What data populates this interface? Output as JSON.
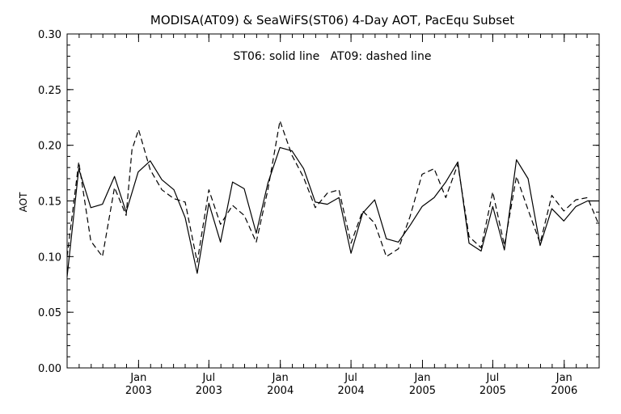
{
  "chart_data": {
    "type": "line",
    "title": "MODISA(AT09) & SeaWiFS(ST06) 4-Day AOT, PacEqu Subset",
    "annotation": "ST06: solid line   AT09: dashed line",
    "xlabel": "",
    "ylabel": "AOT",
    "ylim": [
      0.0,
      0.3
    ],
    "yticks": [
      "0.00",
      "0.05",
      "0.10",
      "0.15",
      "0.20",
      "0.25",
      "0.30"
    ],
    "xlim": [
      "2002-07-01",
      "2006-04-01"
    ],
    "xticks": [
      {
        "date": "2003-01-01",
        "month": "Jan",
        "year": "2003"
      },
      {
        "date": "2003-07-01",
        "month": "Jul",
        "year": "2003"
      },
      {
        "date": "2004-01-01",
        "month": "Jan",
        "year": "2004"
      },
      {
        "date": "2004-07-01",
        "month": "Jul",
        "year": "2004"
      },
      {
        "date": "2005-01-01",
        "month": "Jan",
        "year": "2005"
      },
      {
        "date": "2005-07-01",
        "month": "Jul",
        "year": "2005"
      },
      {
        "date": "2006-01-01",
        "month": "Jan",
        "year": "2006"
      }
    ],
    "series": [
      {
        "name": "ST06",
        "style": "solid",
        "color": "#000000",
        "points": [
          [
            "2002-07-01",
            0.082
          ],
          [
            "2002-07-31",
            0.179
          ],
          [
            "2002-08-31",
            0.144
          ],
          [
            "2002-09-30",
            0.147
          ],
          [
            "2002-10-31",
            0.172
          ],
          [
            "2002-11-30",
            0.14
          ],
          [
            "2002-12-31",
            0.176
          ],
          [
            "2003-01-31",
            0.186
          ],
          [
            "2003-03-02",
            0.169
          ],
          [
            "2003-04-02",
            0.16
          ],
          [
            "2003-05-01",
            0.135
          ],
          [
            "2003-06-01",
            0.085
          ],
          [
            "2003-07-01",
            0.148
          ],
          [
            "2003-07-31",
            0.113
          ],
          [
            "2003-08-31",
            0.167
          ],
          [
            "2003-09-30",
            0.161
          ],
          [
            "2003-10-31",
            0.121
          ],
          [
            "2003-11-30",
            0.166
          ],
          [
            "2003-12-31",
            0.198
          ],
          [
            "2004-01-31",
            0.195
          ],
          [
            "2004-03-01",
            0.179
          ],
          [
            "2004-03-31",
            0.149
          ],
          [
            "2004-05-01",
            0.147
          ],
          [
            "2004-05-31",
            0.153
          ],
          [
            "2004-07-01",
            0.103
          ],
          [
            "2004-07-31",
            0.139
          ],
          [
            "2004-08-31",
            0.151
          ],
          [
            "2004-09-30",
            0.116
          ],
          [
            "2004-10-31",
            0.113
          ],
          [
            "2004-11-30",
            0.128
          ],
          [
            "2004-12-31",
            0.145
          ],
          [
            "2005-01-31",
            0.153
          ],
          [
            "2005-03-02",
            0.167
          ],
          [
            "2005-04-02",
            0.185
          ],
          [
            "2005-05-01",
            0.112
          ],
          [
            "2005-06-01",
            0.105
          ],
          [
            "2005-07-01",
            0.145
          ],
          [
            "2005-07-31",
            0.106
          ],
          [
            "2005-08-31",
            0.187
          ],
          [
            "2005-09-30",
            0.17
          ],
          [
            "2005-10-31",
            0.11
          ],
          [
            "2005-11-30",
            0.143
          ],
          [
            "2005-12-31",
            0.132
          ],
          [
            "2006-01-31",
            0.145
          ],
          [
            "2006-03-02",
            0.15
          ],
          [
            "2006-04-01",
            0.15
          ]
        ]
      },
      {
        "name": "AT09",
        "style": "dashed",
        "color": "#000000",
        "points": [
          [
            "2002-07-01",
            0.1
          ],
          [
            "2002-07-31",
            0.185
          ],
          [
            "2002-08-31",
            0.114
          ],
          [
            "2002-09-30",
            0.1
          ],
          [
            "2002-10-31",
            0.162
          ],
          [
            "2002-11-30",
            0.137
          ],
          [
            "2002-12-15",
            0.196
          ],
          [
            "2003-01-01",
            0.214
          ],
          [
            "2003-01-31",
            0.178
          ],
          [
            "2003-03-02",
            0.16
          ],
          [
            "2003-04-02",
            0.152
          ],
          [
            "2003-05-01",
            0.149
          ],
          [
            "2003-06-01",
            0.095
          ],
          [
            "2003-07-01",
            0.16
          ],
          [
            "2003-07-31",
            0.129
          ],
          [
            "2003-08-31",
            0.146
          ],
          [
            "2003-09-30",
            0.137
          ],
          [
            "2003-10-31",
            0.113
          ],
          [
            "2003-11-30",
            0.16
          ],
          [
            "2003-12-31",
            0.222
          ],
          [
            "2004-01-31",
            0.191
          ],
          [
            "2004-03-01",
            0.171
          ],
          [
            "2004-03-31",
            0.144
          ],
          [
            "2004-05-01",
            0.157
          ],
          [
            "2004-05-31",
            0.16
          ],
          [
            "2004-07-01",
            0.112
          ],
          [
            "2004-07-31",
            0.141
          ],
          [
            "2004-08-31",
            0.13
          ],
          [
            "2004-09-30",
            0.1
          ],
          [
            "2004-10-31",
            0.107
          ],
          [
            "2004-11-30",
            0.136
          ],
          [
            "2004-12-31",
            0.174
          ],
          [
            "2005-01-31",
            0.179
          ],
          [
            "2005-03-02",
            0.153
          ],
          [
            "2005-04-02",
            0.183
          ],
          [
            "2005-05-01",
            0.118
          ],
          [
            "2005-06-01",
            0.108
          ],
          [
            "2005-07-01",
            0.158
          ],
          [
            "2005-07-31",
            0.11
          ],
          [
            "2005-08-31",
            0.172
          ],
          [
            "2005-09-30",
            0.142
          ],
          [
            "2005-10-31",
            0.112
          ],
          [
            "2005-11-30",
            0.155
          ],
          [
            "2005-12-31",
            0.141
          ],
          [
            "2006-01-31",
            0.151
          ],
          [
            "2006-03-02",
            0.153
          ],
          [
            "2006-04-01",
            0.128
          ]
        ]
      }
    ]
  }
}
